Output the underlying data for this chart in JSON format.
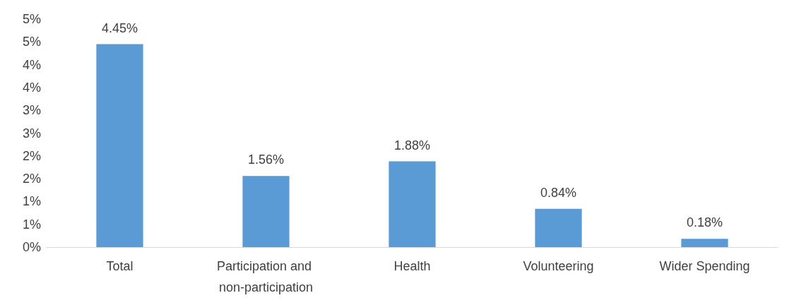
{
  "chart_data": {
    "type": "bar",
    "categories": [
      "Total",
      "Participation and non-participation",
      "Health",
      "Volunteering",
      "Wider Spending"
    ],
    "values": [
      4.45,
      1.56,
      1.88,
      0.84,
      0.18
    ],
    "value_labels": [
      "4.45%",
      "1.56%",
      "1.88%",
      "0.84%",
      "0.18%"
    ],
    "color": "#5b9bd5",
    "ylim": [
      0,
      5
    ],
    "yticks": [
      {
        "value": 0,
        "label": "0%"
      },
      {
        "value": 0.5,
        "label": "1%"
      },
      {
        "value": 1,
        "label": "1%"
      },
      {
        "value": 1.5,
        "label": "2%"
      },
      {
        "value": 2,
        "label": "2%"
      },
      {
        "value": 2.5,
        "label": "3%"
      },
      {
        "value": 3,
        "label": "3%"
      },
      {
        "value": 3.5,
        "label": "4%"
      },
      {
        "value": 4,
        "label": "4%"
      },
      {
        "value": 4.5,
        "label": "5%"
      },
      {
        "value": 5,
        "label": "5%"
      }
    ],
    "grid": false
  }
}
